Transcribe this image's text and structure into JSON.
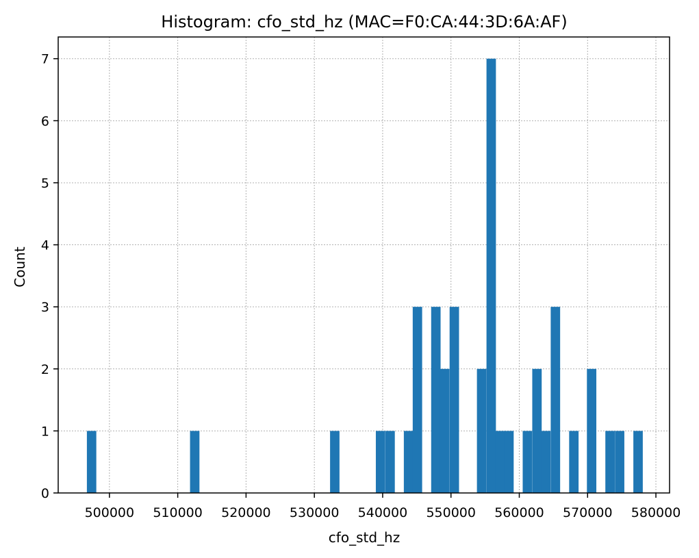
{
  "chart_data": {
    "type": "bar",
    "title": "Histogram: cfo_std_hz (MAC=F0:CA:44:3D:6A:AF)",
    "xlabel": "cfo_std_hz",
    "ylabel": "Count",
    "xlim": [
      492500,
      582000
    ],
    "ylim": [
      0,
      7.35
    ],
    "grid": true,
    "bin_width": 1340,
    "xticks": [
      500000,
      510000,
      520000,
      530000,
      540000,
      550000,
      560000,
      570000,
      580000
    ],
    "xtick_labels": [
      "500000",
      "510000",
      "520000",
      "530000",
      "540000",
      "550000",
      "560000",
      "570000",
      "580000"
    ],
    "yticks": [
      0,
      1,
      2,
      3,
      4,
      5,
      6,
      7
    ],
    "ytick_labels": [
      "0",
      "1",
      "2",
      "3",
      "4",
      "5",
      "6",
      "7"
    ],
    "bins": [
      {
        "x": 496700,
        "count": 1
      },
      {
        "x": 511800,
        "count": 1
      },
      {
        "x": 532300,
        "count": 1
      },
      {
        "x": 539000,
        "count": 1
      },
      {
        "x": 540400,
        "count": 1
      },
      {
        "x": 543100,
        "count": 1
      },
      {
        "x": 544400,
        "count": 3
      },
      {
        "x": 547100,
        "count": 3
      },
      {
        "x": 548400,
        "count": 2
      },
      {
        "x": 549800,
        "count": 3
      },
      {
        "x": 553800,
        "count": 2
      },
      {
        "x": 555200,
        "count": 7
      },
      {
        "x": 556500,
        "count": 1
      },
      {
        "x": 557800,
        "count": 1
      },
      {
        "x": 560500,
        "count": 1
      },
      {
        "x": 561900,
        "count": 2
      },
      {
        "x": 563200,
        "count": 1
      },
      {
        "x": 564600,
        "count": 3
      },
      {
        "x": 567300,
        "count": 1
      },
      {
        "x": 569900,
        "count": 2
      },
      {
        "x": 572600,
        "count": 1
      },
      {
        "x": 574000,
        "count": 1
      },
      {
        "x": 576700,
        "count": 1
      }
    ]
  }
}
